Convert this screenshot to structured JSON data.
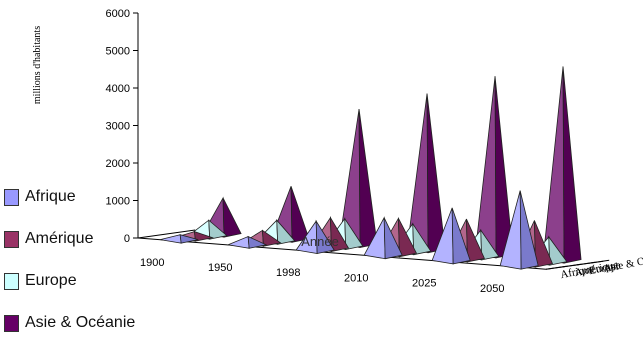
{
  "chart_data": {
    "type": "bar",
    "bar_shape": "3d-cone",
    "title": "",
    "ylabel": "millions d'habitants",
    "xlabel": "Année",
    "ylim": [
      0,
      6000
    ],
    "yticks": [
      "0",
      "1000",
      "2000",
      "3000",
      "4000",
      "5000",
      "6000"
    ],
    "categories": [
      "1900",
      "1950",
      "1998",
      "2010",
      "2025",
      "2050"
    ],
    "series": [
      {
        "name": "Afrique",
        "values": [
          130,
          220,
          770,
          1000,
          1400,
          2000
        ],
        "color": "#9999ff"
      },
      {
        "name": "Amérique",
        "values": [
          160,
          330,
          810,
          930,
          1050,
          1150
        ],
        "color": "#993366"
      },
      {
        "name": "Europe",
        "values": [
          410,
          550,
          730,
          730,
          700,
          660
        ],
        "color": "#ccffff"
      },
      {
        "name": "Asie & Océanie",
        "values": [
          950,
          1400,
          3600,
          4150,
          4750,
          5150
        ],
        "color": "#660066"
      }
    ],
    "depth_labels": [
      "Afrique",
      "Amérique",
      "Europe",
      "Asie & Océanie"
    ],
    "legend_position": "left"
  }
}
